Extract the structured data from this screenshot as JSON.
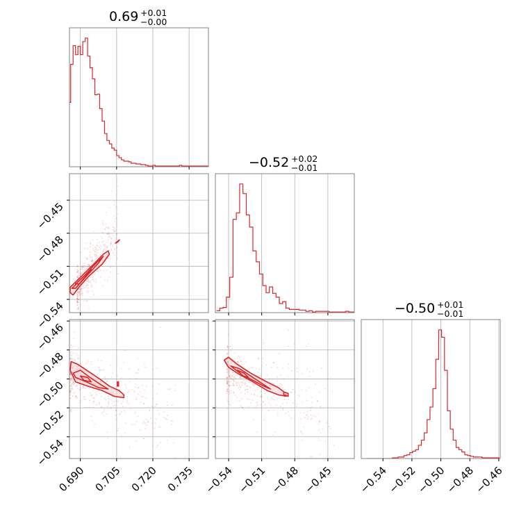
{
  "colors": {
    "series": "#d62728",
    "fill": "#f6cfd2",
    "grid": "#b0b0b0",
    "frame": "#808080"
  },
  "chart_data": {
    "type": "corner",
    "parameters": [
      {
        "title": "0.69",
        "plus": "+0.01",
        "minus": "−0.00",
        "range": [
          0.6855,
          0.743
        ],
        "ticks": [
          0.69,
          0.705,
          0.72,
          0.735
        ],
        "tick_labels": [
          "0.690",
          "0.705",
          "0.720",
          "0.735"
        ]
      },
      {
        "title": "−0.52",
        "plus": "+0.02",
        "minus": "−0.01",
        "range": [
          -0.552,
          -0.426
        ],
        "ticks": [
          -0.54,
          -0.51,
          -0.48,
          -0.45
        ],
        "tick_labels": [
          "−0.54",
          "−0.51",
          "−0.48",
          "−0.45"
        ]
      },
      {
        "title": "−0.50",
        "plus": "+0.01",
        "minus": "−0.01",
        "range": [
          -0.555,
          -0.459
        ],
        "ticks": [
          -0.54,
          -0.52,
          -0.5,
          -0.48,
          -0.46
        ],
        "tick_labels": [
          "−0.54",
          "−0.52",
          "−0.50",
          "−0.48",
          "−0.46"
        ]
      }
    ],
    "histograms": [
      {
        "param": 0,
        "x": [
          0.6855,
          0.6865,
          0.6875,
          0.6885,
          0.6895,
          0.6905,
          0.6915,
          0.6925,
          0.6935,
          0.6945,
          0.6955,
          0.6965,
          0.6975,
          0.6985,
          0.6995,
          0.7005,
          0.7015,
          0.7025,
          0.7035,
          0.7045,
          0.7055,
          0.7065,
          0.7075,
          0.7085,
          0.7095,
          0.7105,
          0.7115,
          0.7125,
          0.7135,
          0.7145,
          0.7155,
          0.7165,
          0.7175,
          0.7185,
          0.7195,
          0.7205,
          0.7215,
          0.7225,
          0.7235,
          0.7245,
          0.7255,
          0.7265,
          0.7275,
          0.7285,
          0.7295,
          0.7305,
          0.7315,
          0.7325,
          0.7335,
          0.7345,
          0.7355,
          0.7365,
          0.7375,
          0.7385,
          0.7395,
          0.7405,
          0.7415,
          0.7425
        ],
        "counts": [
          93,
          148,
          175,
          162,
          174,
          162,
          181,
          186,
          160,
          143,
          127,
          104,
          105,
          84,
          66,
          48,
          38,
          33,
          27,
          24,
          16,
          13,
          10,
          8,
          8,
          7,
          5,
          5,
          4,
          4,
          3,
          3,
          2,
          1,
          1,
          2,
          1,
          1,
          1,
          1,
          1,
          1,
          1,
          1,
          1,
          1,
          2,
          1,
          1,
          1,
          1,
          1,
          1,
          1,
          1,
          1,
          1,
          1
        ]
      },
      {
        "param": 1,
        "x": [
          -0.5495,
          -0.5465,
          -0.5435,
          -0.5405,
          -0.5375,
          -0.5345,
          -0.5315,
          -0.5285,
          -0.5255,
          -0.5225,
          -0.5195,
          -0.5165,
          -0.5135,
          -0.5105,
          -0.5075,
          -0.5045,
          -0.5015,
          -0.4985,
          -0.4955,
          -0.4925,
          -0.4895,
          -0.4865,
          -0.4835,
          -0.4805,
          -0.4775,
          -0.4745,
          -0.4715,
          -0.4685,
          -0.4655,
          -0.4625,
          -0.4595,
          -0.4565,
          -0.4535,
          -0.4505,
          -0.4475,
          -0.4445,
          -0.4415,
          -0.4385,
          -0.4355,
          -0.4325,
          -0.4295,
          -0.4275
        ],
        "counts": [
          3,
          7,
          8,
          24,
          55,
          145,
          155,
          200,
          185,
          152,
          133,
          96,
          79,
          60,
          42,
          31,
          40,
          30,
          24,
          14,
          17,
          7,
          5,
          5,
          5,
          4,
          4,
          2,
          3,
          1,
          2,
          2,
          2,
          2,
          1,
          1,
          1,
          1,
          1,
          2,
          1,
          1
        ]
      },
      {
        "param": 2,
        "x": [
          -0.5505,
          -0.5485,
          -0.5465,
          -0.5445,
          -0.5425,
          -0.5405,
          -0.5385,
          -0.5365,
          -0.5345,
          -0.5325,
          -0.5305,
          -0.5285,
          -0.5265,
          -0.5245,
          -0.5225,
          -0.5205,
          -0.5185,
          -0.5165,
          -0.5145,
          -0.5125,
          -0.5105,
          -0.5085,
          -0.5065,
          -0.5045,
          -0.5025,
          -0.5005,
          -0.4985,
          -0.4965,
          -0.4945,
          -0.4925,
          -0.4905,
          -0.4885,
          -0.4865,
          -0.4845,
          -0.4825,
          -0.4805,
          -0.4785,
          -0.4765,
          -0.4745,
          -0.4725,
          -0.4705,
          -0.4685,
          -0.4665,
          -0.4645,
          -0.4625,
          -0.4605
        ],
        "counts": [
          0,
          0,
          0,
          0,
          0,
          0,
          0,
          0,
          0,
          1,
          1,
          2,
          2,
          4,
          5,
          8,
          10,
          12,
          18,
          25,
          35,
          53,
          70,
          95,
          135,
          175,
          165,
          120,
          65,
          40,
          25,
          15,
          12,
          9,
          5,
          4,
          3,
          2,
          2,
          2,
          1,
          1,
          1,
          1,
          1,
          1
        ]
      }
    ],
    "pairs": [
      {
        "x_param": 0,
        "y_param": 1,
        "slope": 3.0,
        "intercept_at": [
          0.6895,
          -0.525
        ],
        "spread_x": [
          -0.001,
          0.016
        ],
        "spread_y": 0.008,
        "contours": [
          {
            "level": "outer",
            "points": [
              [
                0.6858,
                -0.534
              ],
              [
                0.6858,
                -0.529
              ],
              [
                0.69,
                -0.52
              ],
              [
                0.696,
                -0.507
              ],
              [
                0.6995,
                -0.499
              ],
              [
                0.7015,
                -0.496
              ],
              [
                0.702,
                -0.499
              ],
              [
                0.699,
                -0.508
              ],
              [
                0.693,
                -0.52
              ],
              [
                0.689,
                -0.53
              ],
              [
                0.687,
                -0.536
              ],
              [
                0.6858,
                -0.534
              ]
            ]
          },
          {
            "level": "middle",
            "points": [
              [
                0.6865,
                -0.53
              ],
              [
                0.6915,
                -0.519
              ],
              [
                0.6965,
                -0.507
              ],
              [
                0.6995,
                -0.501
              ],
              [
                0.6975,
                -0.507
              ],
              [
                0.6925,
                -0.519
              ],
              [
                0.688,
                -0.53
              ],
              [
                0.6865,
                -0.53
              ]
            ]
          },
          {
            "level": "inner",
            "points": [
              [
                0.688,
                -0.526
              ],
              [
                0.692,
                -0.518
              ],
              [
                0.6945,
                -0.513
              ],
              [
                0.693,
                -0.517
              ],
              [
                0.6895,
                -0.526
              ],
              [
                0.688,
                -0.526
              ]
            ]
          },
          {
            "level": "island",
            "points": [
              [
                0.7045,
                -0.489
              ],
              [
                0.7062,
                -0.486
              ],
              [
                0.7055,
                -0.488
              ],
              [
                0.7045,
                -0.489
              ]
            ]
          }
        ]
      },
      {
        "x_param": 0,
        "y_param": 2,
        "slope": -0.9,
        "intercept_at": [
          0.6895,
          -0.5
        ],
        "spread_x": [
          -0.004,
          0.04
        ],
        "spread_y": 0.009,
        "contours": [
          {
            "level": "outer",
            "points": [
              [
                0.6858,
                -0.494
              ],
              [
                0.6862,
                -0.488
              ],
              [
                0.689,
                -0.49
              ],
              [
                0.6935,
                -0.495
              ],
              [
                0.698,
                -0.5
              ],
              [
                0.702,
                -0.505
              ],
              [
                0.706,
                -0.508
              ],
              [
                0.708,
                -0.511
              ],
              [
                0.708,
                -0.513
              ],
              [
                0.704,
                -0.512
              ],
              [
                0.699,
                -0.508
              ],
              [
                0.693,
                -0.505
              ],
              [
                0.688,
                -0.502
              ],
              [
                0.6858,
                -0.494
              ]
            ]
          },
          {
            "level": "middle",
            "points": [
              [
                0.687,
                -0.496
              ],
              [
                0.69,
                -0.494
              ],
              [
                0.694,
                -0.499
              ],
              [
                0.6985,
                -0.504
              ],
              [
                0.7015,
                -0.507
              ],
              [
                0.6975,
                -0.506
              ],
              [
                0.6925,
                -0.502
              ],
              [
                0.688,
                -0.499
              ],
              [
                0.687,
                -0.496
              ]
            ]
          },
          {
            "level": "inner",
            "points": [
              [
                0.69,
                -0.498
              ],
              [
                0.693,
                -0.499
              ],
              [
                0.6945,
                -0.502
              ],
              [
                0.6915,
                -0.501
              ],
              [
                0.69,
                -0.498
              ]
            ]
          },
          {
            "level": "island",
            "points": [
              [
                0.7053,
                -0.502
              ],
              [
                0.7058,
                -0.502
              ],
              [
                0.7058,
                -0.505
              ],
              [
                0.7053,
                -0.505
              ],
              [
                0.7053,
                -0.502
              ]
            ]
          }
        ]
      },
      {
        "x_param": 1,
        "y_param": 2,
        "slope": -0.33,
        "intercept_at": [
          -0.53,
          -0.5
        ],
        "spread_x": [
          -0.012,
          0.085
        ],
        "spread_y": 0.008,
        "contours": [
          {
            "level": "outer",
            "points": [
              [
                -0.544,
                -0.487
              ],
              [
                -0.54,
                -0.485
              ],
              [
                -0.532,
                -0.49
              ],
              [
                -0.52,
                -0.496
              ],
              [
                -0.508,
                -0.501
              ],
              [
                -0.495,
                -0.506
              ],
              [
                -0.488,
                -0.51
              ],
              [
                -0.488,
                -0.512
              ],
              [
                -0.495,
                -0.511
              ],
              [
                -0.505,
                -0.508
              ],
              [
                -0.518,
                -0.502
              ],
              [
                -0.53,
                -0.497
              ],
              [
                -0.54,
                -0.492
              ],
              [
                -0.544,
                -0.487
              ]
            ]
          },
          {
            "level": "middle",
            "points": [
              [
                -0.538,
                -0.491
              ],
              [
                -0.53,
                -0.493
              ],
              [
                -0.52,
                -0.498
              ],
              [
                -0.51,
                -0.503
              ],
              [
                -0.502,
                -0.507
              ],
              [
                -0.508,
                -0.505
              ],
              [
                -0.518,
                -0.501
              ],
              [
                -0.528,
                -0.497
              ],
              [
                -0.538,
                -0.491
              ]
            ]
          },
          {
            "level": "inner",
            "points": [
              [
                -0.532,
                -0.494
              ],
              [
                -0.526,
                -0.496
              ],
              [
                -0.522,
                -0.499
              ],
              [
                -0.527,
                -0.498
              ],
              [
                -0.532,
                -0.494
              ]
            ]
          },
          {
            "level": "island",
            "points": [
              [
                -0.49,
                -0.509
              ],
              [
                -0.486,
                -0.51
              ],
              [
                -0.486,
                -0.512
              ],
              [
                -0.49,
                -0.511
              ],
              [
                -0.49,
                -0.509
              ]
            ]
          }
        ]
      }
    ],
    "grid": true,
    "legend": "none"
  }
}
